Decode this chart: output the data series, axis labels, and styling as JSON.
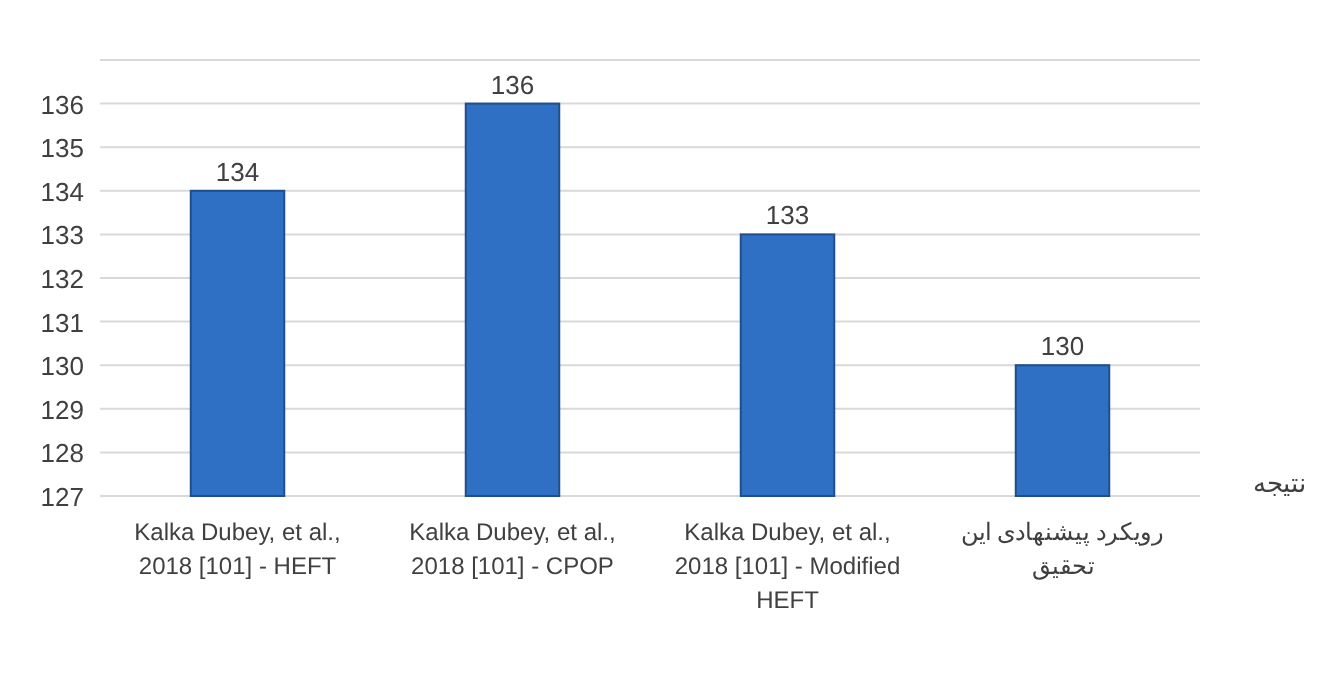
{
  "chart_data": {
    "type": "bar",
    "categories": [
      "Kalka Dubey, et al., 2018 [101] - HEFT",
      "Kalka Dubey, et al., 2018 [101] - CPOP",
      "Kalka Dubey, et al., 2018 [101] - Modified HEFT",
      "رویکرد پیشنهادی این تحقیق"
    ],
    "series": [
      {
        "name": "نتیجه",
        "color": "#3070c4",
        "values": [
          134,
          136,
          133,
          130
        ]
      }
    ],
    "ylim": [
      127,
      137
    ],
    "yticks": [
      127,
      128,
      129,
      130,
      131,
      132,
      133,
      134,
      135,
      136,
      {
        "value": 137,
        "label": null
      }
    ],
    "grid": "y",
    "data_labels": true
  }
}
